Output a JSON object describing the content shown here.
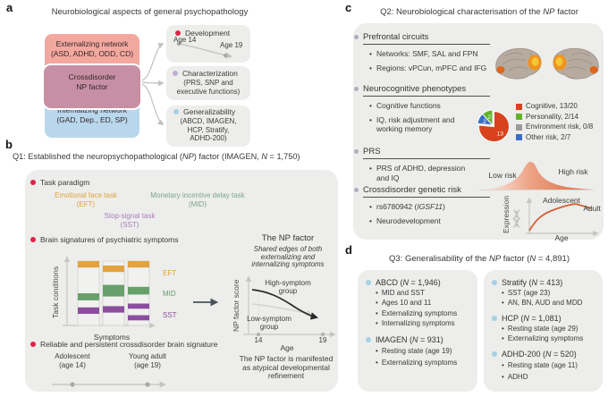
{
  "panel_a": {
    "label": "a",
    "title": "Neurobiological aspects of general psychopathology",
    "externalizing": [
      "Externalizing network",
      "(ASD, ADHD, ODD, CD)"
    ],
    "crossdisorder": [
      "Crossdisorder",
      "NP factor"
    ],
    "internalizing": [
      "Internalizing network",
      "(GAD, Dep., ED, SP)"
    ],
    "development": {
      "title": "Development",
      "start": "Age 14",
      "end": "Age 19"
    },
    "characterization": {
      "title": "Characterization",
      "sub": [
        "(PRS, SNP and",
        "executive functions)"
      ]
    },
    "generalizability": {
      "title": "Generalizability",
      "sub": [
        "(ABCD, IMAGEN,",
        "HCP, Stratify,",
        "ADHD-200)"
      ]
    },
    "bullet_colors": {
      "development": "#e02447",
      "characterization": "#c0aed4",
      "generalizability": "#a6d0e4"
    }
  },
  "panel_b": {
    "label": "b",
    "title": "Q1: Established the neuropsychopathological (*NP*) factor (IMAGEN, *N* = 1,750)",
    "task_paradigm": "Task paradigm",
    "eft": [
      "Emotional face task",
      "(EFT)"
    ],
    "mid": [
      "Monetary incentive delay task",
      "(MID)"
    ],
    "sst": [
      "Stop-signal task",
      "(SST)"
    ],
    "brain_signatures": "Brain signatures of psychiatric symptoms",
    "chart": {
      "ylabel": "Task conditions",
      "xlabel": "Symptoms",
      "series": [
        "EFT",
        "MID",
        "SST"
      ],
      "series_colors": {
        "eft": "#e2a23d",
        "mid": "#68a06c",
        "sst": "#8c4d9e"
      },
      "label_colors": {
        "eft": "#e0a33e",
        "mid": "#7ca78b",
        "sst": "#a77fba"
      },
      "bars": [
        {
          "bands": [
            [
              0.0,
              0.1,
              "eft"
            ],
            [
              0.5,
              0.61,
              "mid"
            ],
            [
              0.72,
              0.82,
              "sst"
            ]
          ]
        },
        {
          "bands": [
            [
              0.07,
              0.17,
              "eft"
            ],
            [
              0.37,
              0.55,
              "mid"
            ],
            [
              0.7,
              0.8,
              "sst"
            ]
          ]
        },
        {
          "bands": [
            [
              0.0,
              0.1,
              "eft"
            ],
            [
              0.4,
              0.52,
              "mid"
            ],
            [
              0.66,
              0.74,
              "sst"
            ],
            [
              0.84,
              0.92,
              "sst"
            ]
          ]
        }
      ]
    },
    "reliable": "Reliable and persistent crossdisorder brain signature",
    "timeline": {
      "left": [
        "Adolescent",
        "(age 14)"
      ],
      "right": [
        "Young adult",
        "(age 19)"
      ]
    },
    "np": {
      "title": "The NP factor",
      "subtitle": [
        "Shared edges of both",
        "externalizing and",
        "internalizing symptoms"
      ],
      "ylabel": "NP factor score",
      "xlabel": "Age",
      "ticks": [
        "14",
        "19"
      ],
      "high": [
        "High-symptom",
        "group"
      ],
      "low": [
        "Low-symptom",
        "group"
      ],
      "caption": [
        "The NP factor is manifested",
        "as atypical developmental",
        "refinement"
      ]
    }
  },
  "panel_c": {
    "label": "c",
    "title": "Q2: Neurobiological characterisation of the *NP* factor",
    "sections": [
      {
        "heading": "Prefrontal circuits",
        "bullets": [
          "Networks: SMF, SAL and FPN",
          "Regions: vPCun, mPFC and IFG"
        ]
      },
      {
        "heading": "Neurocognitive phenotypes",
        "bullets": [
          "Cognitive functions",
          "IQ, risk adjustment and working memory"
        ]
      },
      {
        "heading": "PRS",
        "bullets": [
          "PRS of ADHD, depression and IQ"
        ]
      },
      {
        "heading": "Crossdisorder genetic risk",
        "bullets": [
          "rs6780942 (*IGSF11*)",
          "Neurodevelopment"
        ]
      }
    ],
    "pie": {
      "type": "pie",
      "order": [
        0,
        3,
        2,
        1
      ],
      "slices": [
        {
          "label": "Cognitive, 13/20",
          "value": 13,
          "color": "#d8431d",
          "display": "13"
        },
        {
          "label": "Personality, 2/14",
          "value": 2,
          "color": "#63b32c",
          "display": "2"
        },
        {
          "label": "Environment risk, 0/8",
          "value": 0,
          "color": "#9b9b9b",
          "display": ""
        },
        {
          "label": "Other risk, 2/7",
          "value": 2,
          "color": "#3b6ec5",
          "display": "2"
        }
      ]
    },
    "prs_curve": {
      "low": "Low risk",
      "high": "High risk"
    },
    "expression": {
      "ylabel": "Expression",
      "xlabel": "Age",
      "adolescent": "Adolescent",
      "adult": "Adult"
    }
  },
  "panel_d": {
    "label": "d",
    "title": "Q3: Generalisability of the *NP* factor (*N* = 4,891)",
    "left": [
      {
        "name": "ABCD (*N* = 1,946)",
        "items": [
          "MID and SST",
          "Ages 10 and 11",
          "Externalizing symptoms",
          "Internalizing symptoms"
        ]
      },
      {
        "name": "IMAGEN (*N* = 931)",
        "items": [
          "Resting state (age 19)",
          "Externalizing symptoms"
        ]
      }
    ],
    "right": [
      {
        "name": "Stratify (*N* = 413)",
        "items": [
          "SST (age 23)",
          "AN, BN, AUD and MDD"
        ]
      },
      {
        "name": "HCP (*N* = 1,081)",
        "items": [
          "Resting state (age 29)",
          "Externalizing symptoms"
        ]
      },
      {
        "name": "ADHD-200 (*N* = 520)",
        "items": [
          "Resting state (age 11)",
          "ADHD"
        ]
      }
    ]
  }
}
